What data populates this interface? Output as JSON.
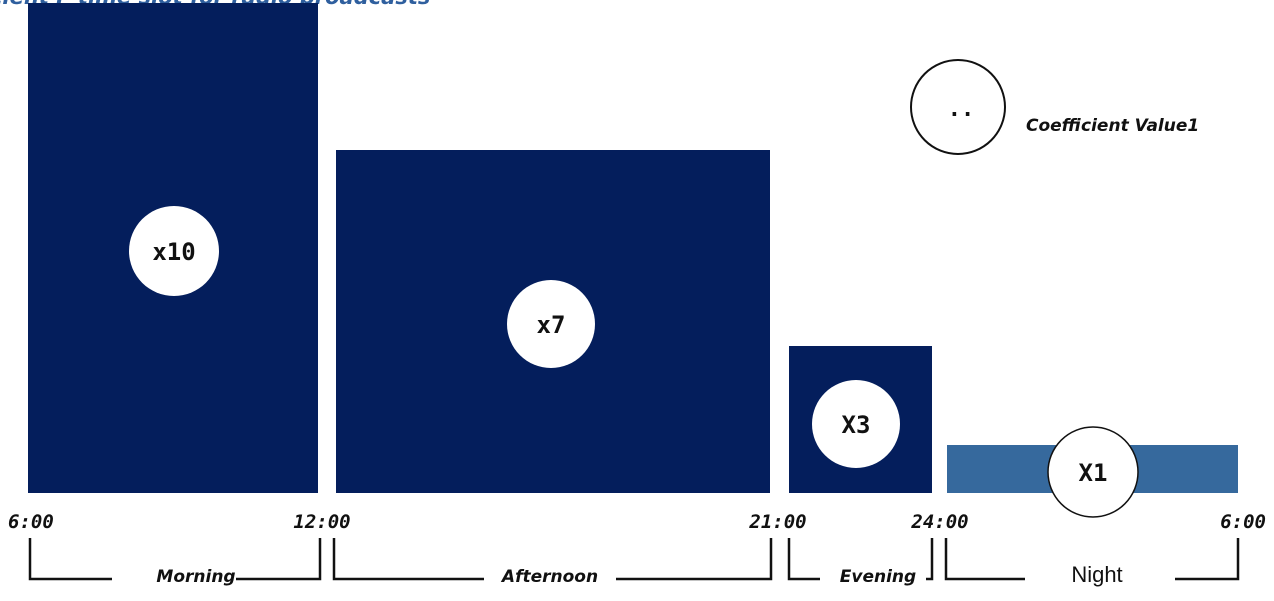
{
  "chart_data": {
    "type": "bar",
    "title": "Coefficient F time slot  for radio broadcasts",
    "x_unit": "hour of day",
    "ticks": [
      "6:00",
      "12:00",
      "21:00",
      "24:00",
      "6:00"
    ],
    "categories": [
      "Morning",
      "Afternoon",
      "Evening",
      "Night"
    ],
    "start_hour": [
      6,
      12,
      21,
      24
    ],
    "end_hour": [
      12,
      21,
      24,
      30
    ],
    "values": [
      10,
      7,
      3,
      1
    ],
    "value_labels": [
      "x10",
      "x7",
      "X3",
      "X1"
    ],
    "bar_colors": [
      "#041e5c",
      "#041e5c",
      "#041e5c",
      "#36699d"
    ],
    "legend": {
      "symbol_text": "..",
      "label": "Coefficient Value1",
      "placement": "top-right"
    },
    "grid": false
  }
}
